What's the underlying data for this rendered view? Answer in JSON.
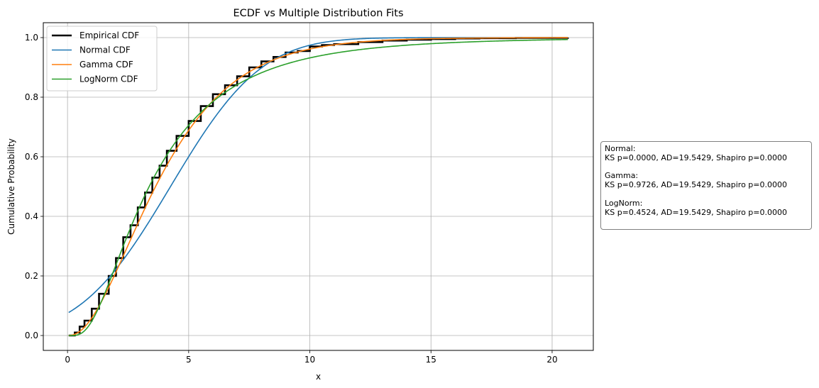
{
  "chart_data": {
    "type": "line",
    "title": "ECDF vs Multiple Distribution Fits",
    "xlabel": "x",
    "ylabel": "Cumulative Probability",
    "xlim": [
      -1.0,
      21.7
    ],
    "ylim": [
      -0.05,
      1.05
    ],
    "xticks": [
      0,
      5,
      10,
      15,
      20
    ],
    "yticks": [
      0.0,
      0.2,
      0.4,
      0.6,
      0.8,
      1.0
    ],
    "grid": true,
    "legend_position": "top-left",
    "x_range": [
      0.05,
      20.65
    ],
    "series": [
      {
        "name": "Empirical CDF",
        "color": "#000000",
        "kind": "step",
        "points": [
          [
            0.05,
            0.0
          ],
          [
            0.3,
            0.01
          ],
          [
            0.5,
            0.03
          ],
          [
            0.7,
            0.05
          ],
          [
            1.0,
            0.09
          ],
          [
            1.3,
            0.14
          ],
          [
            1.7,
            0.2
          ],
          [
            2.0,
            0.26
          ],
          [
            2.3,
            0.33
          ],
          [
            2.6,
            0.37
          ],
          [
            2.9,
            0.43
          ],
          [
            3.2,
            0.48
          ],
          [
            3.5,
            0.53
          ],
          [
            3.8,
            0.57
          ],
          [
            4.1,
            0.62
          ],
          [
            4.5,
            0.67
          ],
          [
            5.0,
            0.72
          ],
          [
            5.5,
            0.77
          ],
          [
            6.0,
            0.81
          ],
          [
            6.5,
            0.84
          ],
          [
            7.0,
            0.87
          ],
          [
            7.5,
            0.9
          ],
          [
            8.0,
            0.92
          ],
          [
            8.5,
            0.935
          ],
          [
            9.0,
            0.95
          ],
          [
            9.5,
            0.955
          ],
          [
            10.0,
            0.97
          ],
          [
            10.5,
            0.975
          ],
          [
            11.0,
            0.978
          ],
          [
            12.0,
            0.985
          ],
          [
            13.0,
            0.99
          ],
          [
            14.0,
            0.993
          ],
          [
            15.0,
            0.995
          ],
          [
            16.0,
            0.997
          ],
          [
            17.0,
            0.998
          ],
          [
            18.5,
            0.999
          ],
          [
            20.65,
            1.0
          ]
        ]
      },
      {
        "name": "Normal CDF",
        "color": "#1f77b4",
        "kind": "normal",
        "mean": 4.25,
        "sd": 2.95
      },
      {
        "name": "Gamma CDF",
        "color": "#ff7f0e",
        "kind": "gamma",
        "shape": 2.4,
        "scale": 1.75
      },
      {
        "name": "LogNorm CDF",
        "color": "#2ca02c",
        "kind": "lognormal",
        "mu": 1.215,
        "sigma": 0.73
      }
    ]
  },
  "stats": {
    "normal": {
      "heading": "Normal:",
      "line": "KS p=0.0000, AD=19.5429, Shapiro p=0.0000"
    },
    "gamma": {
      "heading": "Gamma:",
      "line": "KS p=0.9726, AD=19.5429, Shapiro p=0.0000"
    },
    "lognorm": {
      "heading": "LogNorm:",
      "line": "KS p=0.4524, AD=19.5429, Shapiro p=0.0000"
    }
  }
}
